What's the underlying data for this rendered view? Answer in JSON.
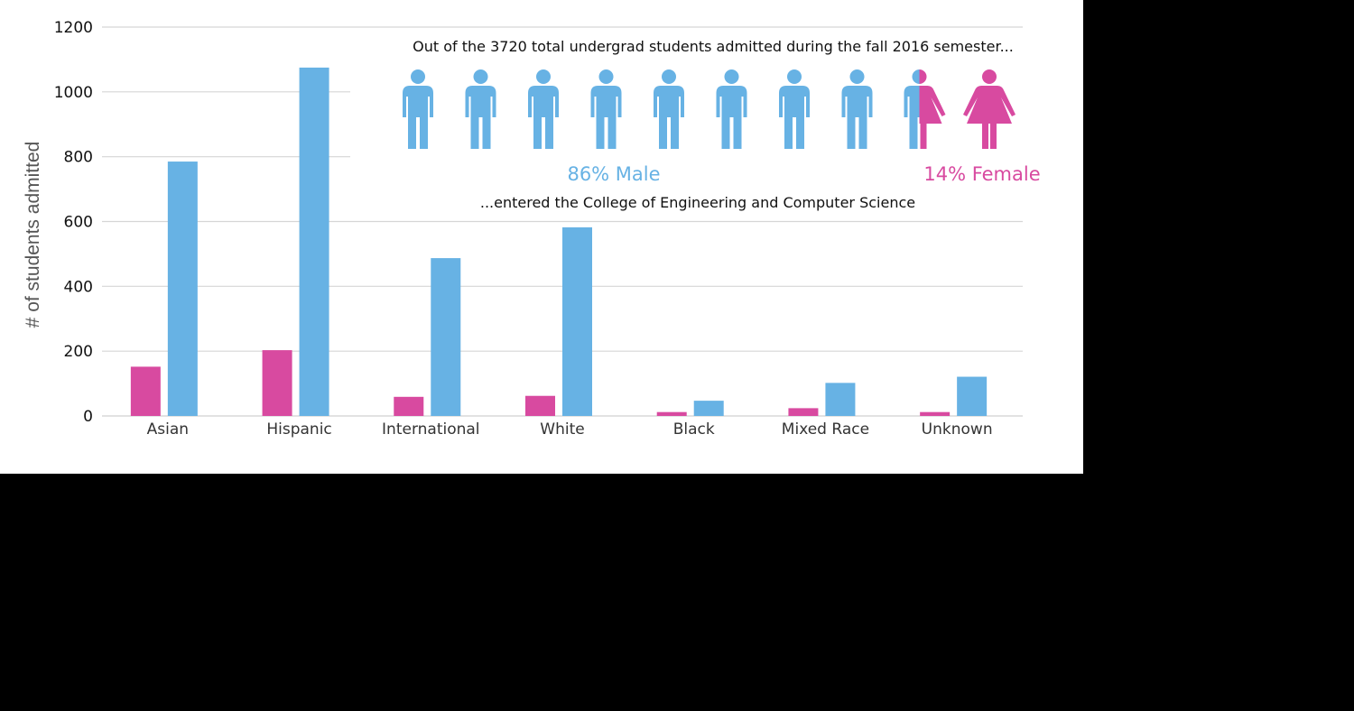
{
  "colors": {
    "male": "#67b2e4",
    "female": "#d84aa0",
    "grid": "#d6d6d6",
    "background": "#ffffff"
  },
  "chart_data": {
    "type": "bar",
    "categories": [
      "Asian",
      "Hispanic",
      "International",
      "White",
      "Black",
      "Mixed Race",
      "Unknown"
    ],
    "series": [
      {
        "key": "female",
        "values": [
          152,
          203,
          59,
          62,
          12,
          24,
          12
        ]
      },
      {
        "key": "male",
        "values": [
          785,
          1075,
          487,
          582,
          47,
          102,
          121
        ]
      }
    ],
    "ylabel": "# of students admitted",
    "xlabel": "",
    "ylim": [
      0,
      1200
    ],
    "yticks": [
      0,
      200,
      400,
      600,
      800,
      1000,
      1200
    ],
    "grid": true,
    "legend": "none"
  },
  "infographic": {
    "text_top": "Out of the 3720 total undergrad students admitted during the fall 2016 semester...",
    "text_bottom": "...entered the College of Engineering and Computer Science",
    "male_label": "86% Male",
    "female_label": "14% Female",
    "male_fraction": 0.86,
    "female_fraction": 0.14,
    "icon_count": 10,
    "icons": [
      "male-person-icon",
      "female-person-icon"
    ]
  }
}
